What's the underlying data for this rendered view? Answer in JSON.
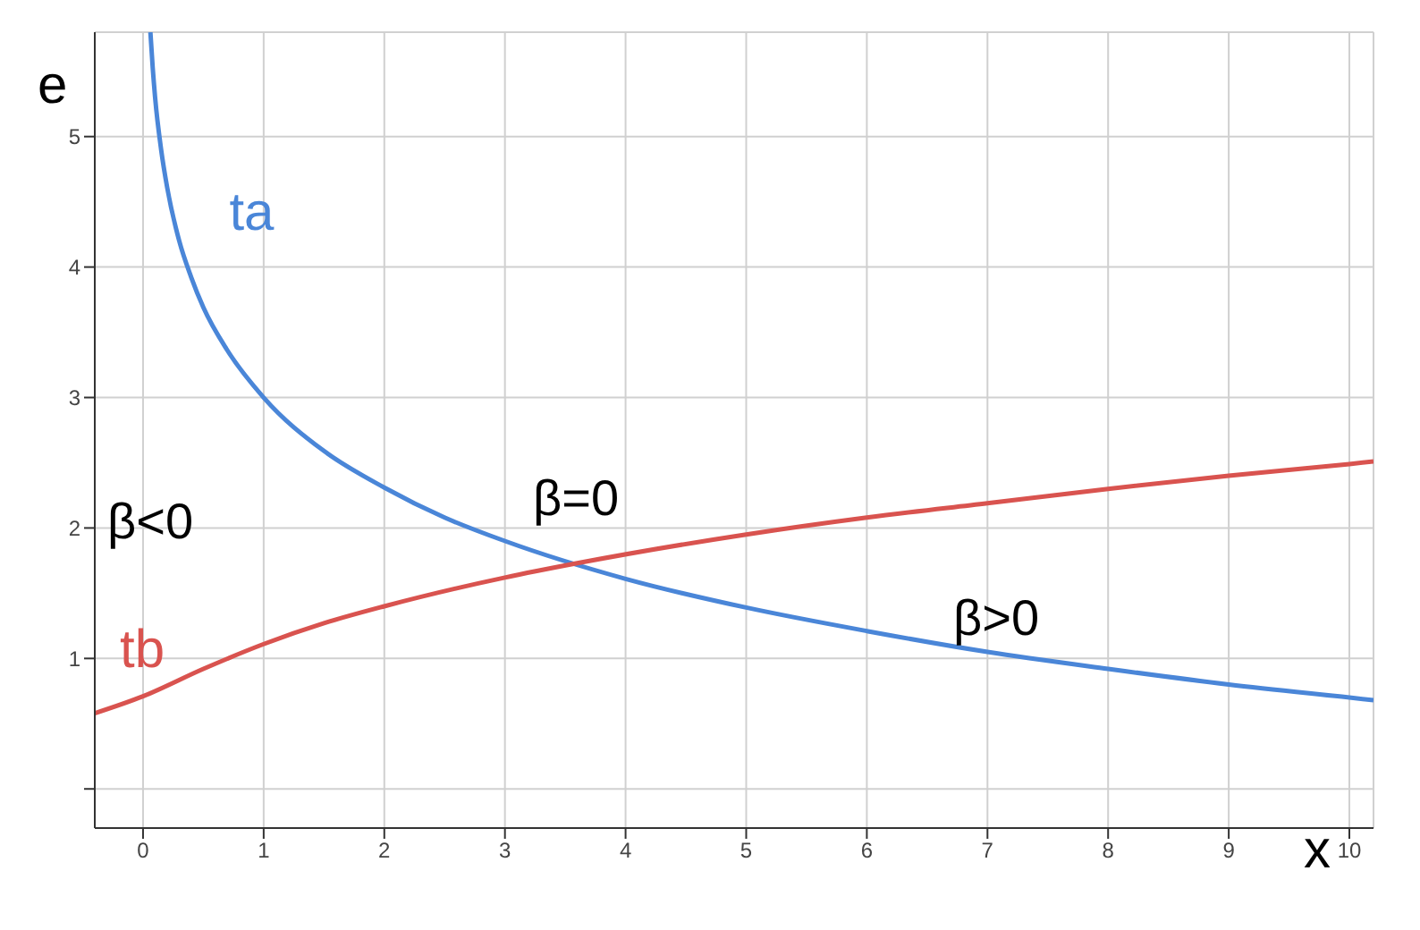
{
  "chart_data": {
    "type": "line",
    "xlabel": "x",
    "ylabel": "e",
    "xlim": [
      -0.4,
      10.2
    ],
    "ylim": [
      -0.3,
      5.8
    ],
    "xticks": [
      0,
      1,
      2,
      3,
      4,
      5,
      6,
      7,
      8,
      9,
      10
    ],
    "yticks": [
      {
        "value": 0,
        "label": null
      },
      1,
      2,
      3,
      4,
      5
    ],
    "grid": true,
    "marker": "none",
    "line_style": "solid",
    "series": [
      {
        "name": "ta",
        "color": "#4a86d8",
        "x": [
          0.061,
          0.08,
          0.1,
          0.15,
          0.2,
          0.3,
          0.4,
          0.5,
          0.7,
          1,
          1.5,
          2,
          2.5,
          3,
          4,
          5,
          6,
          7,
          8,
          9,
          10,
          10.2
        ],
        "values": [
          5.8,
          5.53,
          5.3,
          4.9,
          4.61,
          4.2,
          3.92,
          3.69,
          3.36,
          3.0,
          2.59,
          2.31,
          2.08,
          1.9,
          1.61,
          1.39,
          1.21,
          1.05,
          0.92,
          0.8,
          0.7,
          0.68
        ]
      },
      {
        "name": "tb",
        "color": "#d9534f",
        "x": [
          -0.4,
          0,
          0.5,
          1,
          1.5,
          2,
          3,
          3.6,
          5,
          6,
          7,
          8,
          9,
          10,
          10.2
        ],
        "values": [
          0.58,
          0.71,
          0.92,
          1.11,
          1.27,
          1.4,
          1.62,
          1.73,
          1.95,
          2.08,
          2.19,
          2.3,
          2.4,
          2.49,
          2.51
        ]
      }
    ],
    "annotations": [
      "β<0",
      "β=0",
      "β>0"
    ]
  }
}
